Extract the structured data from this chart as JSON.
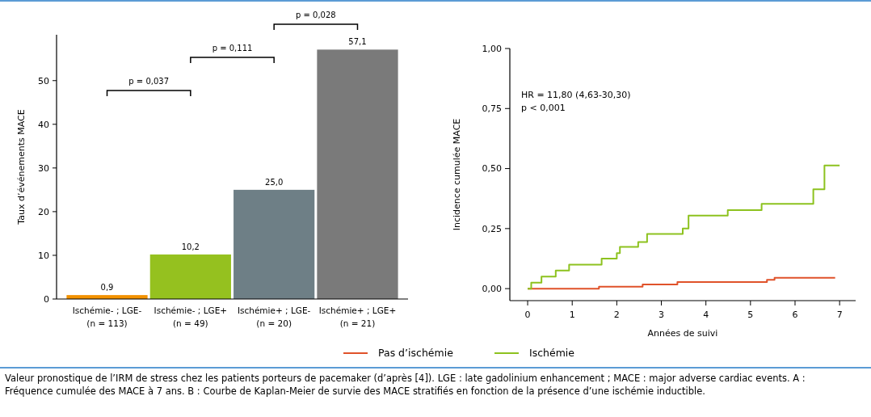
{
  "chart_data": [
    {
      "type": "bar",
      "ylabel": "Taux d’événements MACE",
      "categories": [
        "Ischémie- ; LGE-\n(n = 113)",
        "Ischémie- ; LGE+\n(n = 49)",
        "Ischémie+ ; LGE-\n(n = 20)",
        "Ischémie+ ; LGE+\n(n = 21)"
      ],
      "values": [
        0.9,
        10.2,
        25.0,
        57.1
      ],
      "colors": [
        "#f39200",
        "#95c11f",
        "#6e7f86",
        "#7a7a7a"
      ],
      "value_labels": [
        "0,9",
        "10,2",
        "25,0",
        "57,1"
      ],
      "ylim": [
        0,
        60.5
      ],
      "yticks": [
        0,
        10,
        20,
        30,
        40,
        50
      ],
      "annotations": [
        "p = 0,037",
        "p = 0,111",
        "p = 0,028"
      ]
    },
    {
      "type": "step",
      "xlabel": "Années de suivi",
      "ylabel": "Incidence cumulée MACE",
      "series": [
        {
          "name": "Pas d’ischémie",
          "color": "#e0522a",
          "x": [
            0,
            1.6,
            2.58,
            3.36,
            5.37,
            5.54,
            6.9
          ],
          "values": [
            0,
            0.008,
            0.017,
            0.027,
            0.037,
            0.045,
            0.045
          ]
        },
        {
          "name": "Ischémie",
          "color": "#8dc21f",
          "x": [
            0,
            0.08,
            0.31,
            0.63,
            0.93,
            1.66,
            2.0,
            2.07,
            2.48,
            2.68,
            3.48,
            3.61,
            4.49,
            5.25,
            6.41,
            6.66,
            7.0
          ],
          "values": [
            0,
            0.025,
            0.05,
            0.075,
            0.1,
            0.125,
            0.148,
            0.174,
            0.194,
            0.228,
            0.25,
            0.304,
            0.327,
            0.353,
            0.414,
            0.513,
            0.513
          ]
        }
      ],
      "xlim": [
        -0.4,
        7.36
      ],
      "xticks": [
        0,
        1,
        2,
        3,
        4,
        5,
        6,
        7
      ],
      "ylim": [
        -0.05,
        1
      ],
      "yticks": [
        {
          "value": 0,
          "label": "0,00"
        },
        {
          "value": 0.25,
          "label": "0,25"
        },
        {
          "value": 0.5,
          "label": "0,50"
        },
        {
          "value": 0.75,
          "label": "0,75"
        },
        {
          "value": 1,
          "label": "1,00"
        }
      ],
      "legend": "bottom",
      "annotations": [
        "HR = 11,80 (4,63-30,30)",
        "p < 0,001",
        "Valeur pronostique de l’IRM de stress chez les patients porteurs de pacemaker (d’après [4]). LGE : late gadolinium enhancement ; MACE : major adverse cardiac events. A : Fréquence cumulée des MACE à 7 ans. B : Courbe de Kaplan-Meier de survie des MACE stratifiés en fonction de la présence d’une ischémie inductible."
      ]
    }
  ]
}
